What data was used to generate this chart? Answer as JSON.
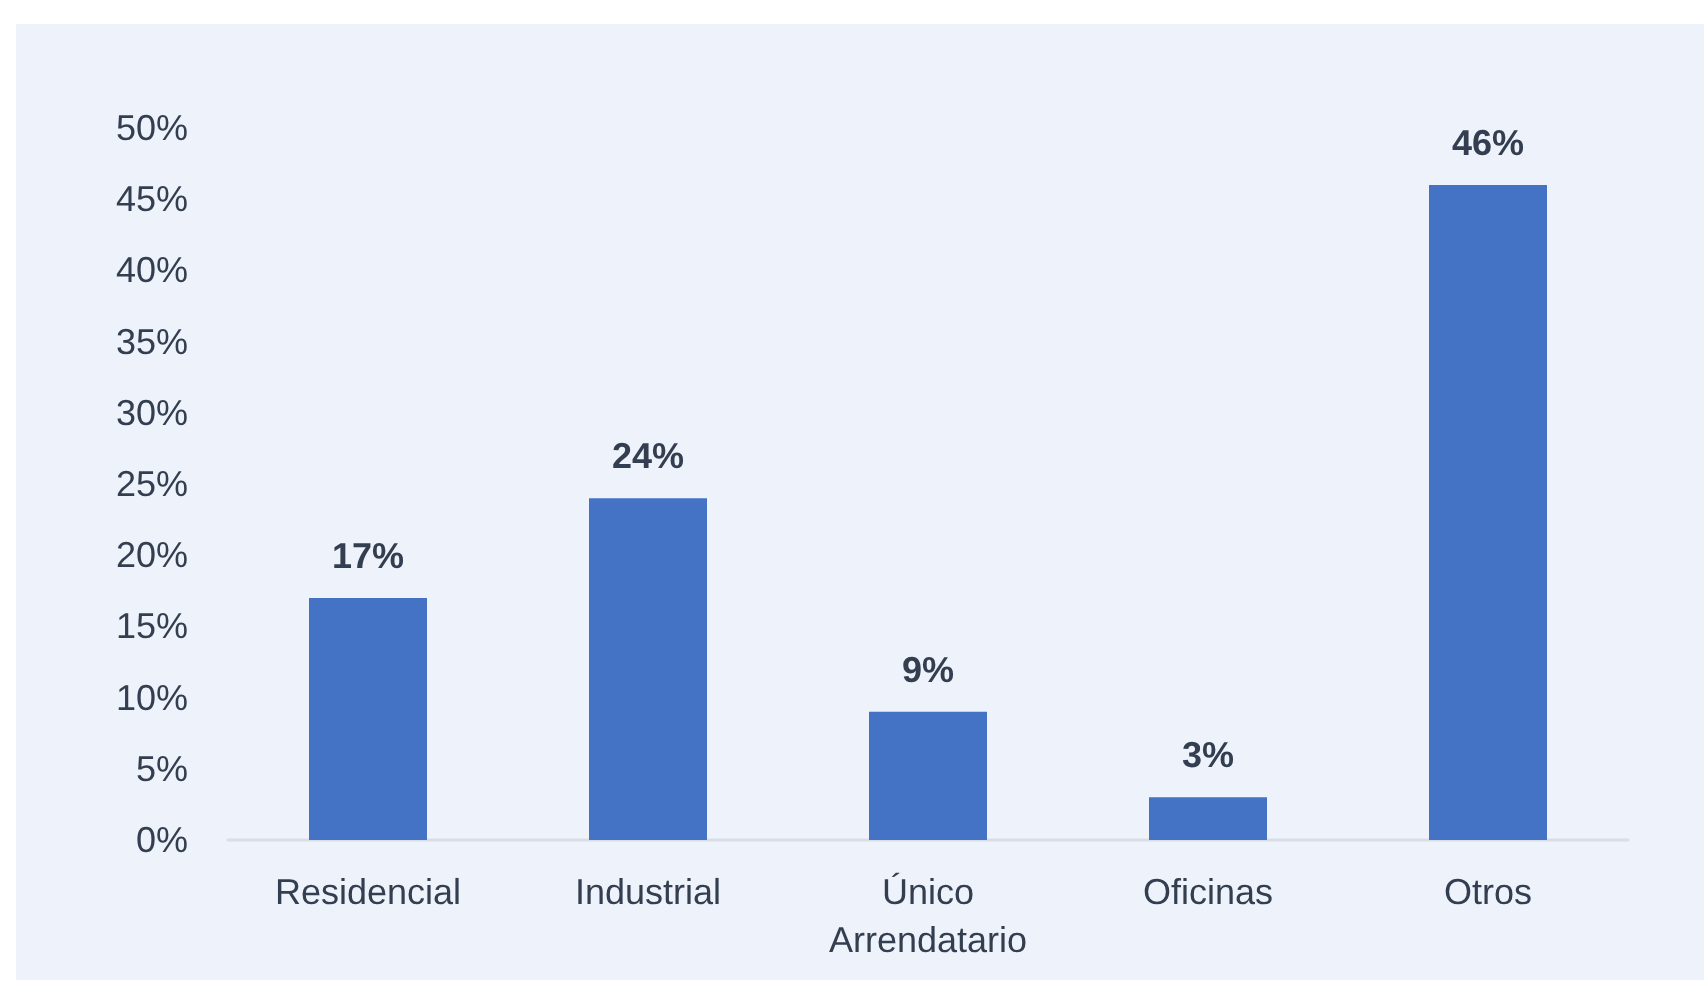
{
  "chart_data": {
    "type": "bar",
    "categories": [
      "Residencial",
      "Industrial",
      "Único\nArrendatario",
      "Oficinas",
      "Otros"
    ],
    "values": [
      17,
      24,
      9,
      3,
      46
    ],
    "value_labels": [
      "17%",
      "24%",
      "9%",
      "3%",
      "46%"
    ],
    "color": "#4472c4",
    "ylim": [
      0,
      50
    ],
    "yticks": [
      {
        "value": 0,
        "label": "0%"
      },
      {
        "value": 5,
        "label": "5%"
      },
      {
        "value": 10,
        "label": "10%"
      },
      {
        "value": 15,
        "label": "15%"
      },
      {
        "value": 20,
        "label": "20%"
      },
      {
        "value": 25,
        "label": "25%"
      },
      {
        "value": 30,
        "label": "30%"
      },
      {
        "value": 35,
        "label": "35%"
      },
      {
        "value": 40,
        "label": "40%"
      },
      {
        "value": 45,
        "label": "45%"
      },
      {
        "value": 50,
        "label": "50%"
      }
    ],
    "grid": false
  }
}
